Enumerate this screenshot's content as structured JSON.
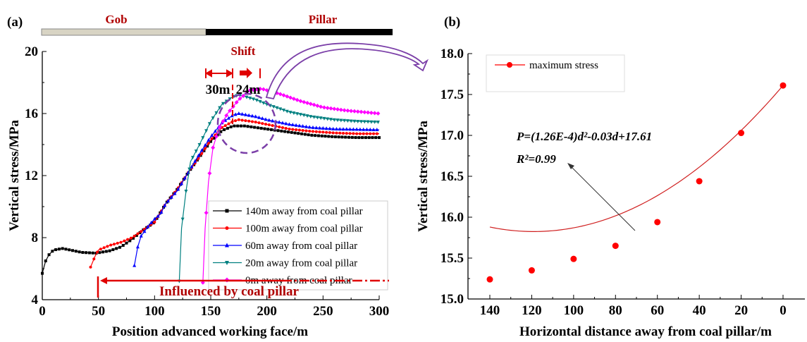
{
  "chart_data": [
    {
      "panel_label": "(a)",
      "type": "line",
      "xlabel": "Position advanced working face/m",
      "ylabel": "Vertical stress/MPa",
      "xlim": [
        0,
        300
      ],
      "ylim": [
        4,
        20
      ],
      "xticks": [
        "0",
        "50",
        "100",
        "150",
        "200",
        "250",
        "300"
      ],
      "yticks": [
        "4",
        "8",
        "12",
        "16",
        "20"
      ],
      "legend_position": "bottom-right",
      "zone_bar": {
        "gob_label": "Gob",
        "pillar_label": "Pillar",
        "boundary_x": 150
      },
      "annotations": {
        "shift": "Shift",
        "shift1": "30m",
        "shift2": "24m",
        "influence": "Influenced by coal pillar",
        "influence_start_x": 50
      },
      "series": [
        {
          "name": "140m away from coal pillar",
          "color": "#000000",
          "marker": "square",
          "x": [
            0,
            3,
            6,
            10,
            18,
            25,
            35,
            48,
            60,
            70,
            80,
            90,
            100,
            110,
            120,
            130,
            140,
            150,
            160,
            170,
            180,
            190,
            200,
            220,
            240,
            260,
            280,
            300
          ],
          "y": [
            5.7,
            6.5,
            6.9,
            7.2,
            7.3,
            7.2,
            7.05,
            7.0,
            7.15,
            7.4,
            7.9,
            8.5,
            9.0,
            10.2,
            11.1,
            12.2,
            13.2,
            14.2,
            14.9,
            15.2,
            15.2,
            15.1,
            15.0,
            14.8,
            14.6,
            14.5,
            14.45,
            14.45
          ]
        },
        {
          "name": "100m away from coal pillar",
          "color": "#ff0000",
          "marker": "circle",
          "x": [
            43,
            47,
            50,
            60,
            70,
            80,
            90,
            100,
            110,
            120,
            130,
            140,
            150,
            160,
            170,
            175,
            190,
            200,
            220,
            240,
            260,
            280,
            300
          ],
          "y": [
            6.1,
            6.8,
            7.2,
            7.5,
            7.7,
            8.0,
            8.5,
            9.0,
            10.2,
            11.1,
            12.2,
            13.2,
            14.3,
            15.1,
            15.5,
            15.6,
            15.45,
            15.3,
            15.0,
            14.85,
            14.75,
            14.7,
            14.7
          ]
        },
        {
          "name": "60m away from coal pillar",
          "color": "#0000ff",
          "marker": "triangle-up",
          "x": [
            82,
            85,
            88,
            95,
            100,
            105,
            110,
            120,
            130,
            140,
            150,
            160,
            170,
            175,
            190,
            200,
            220,
            240,
            260,
            300
          ],
          "y": [
            6.2,
            7.4,
            8.1,
            8.8,
            9.2,
            9.5,
            10.2,
            11.0,
            12.2,
            13.4,
            14.5,
            15.4,
            15.9,
            16.0,
            15.8,
            15.6,
            15.3,
            15.1,
            15.0,
            14.95
          ]
        },
        {
          "name": "20m away from coal pillar",
          "color": "#008080",
          "marker": "triangle-down",
          "x": [
            122,
            124,
            128,
            132,
            140,
            150,
            160,
            170,
            175,
            190,
            200,
            220,
            240,
            260,
            280,
            300
          ],
          "y": [
            5.2,
            8.6,
            11.0,
            12.9,
            14.0,
            15.5,
            16.6,
            17.1,
            17.2,
            16.9,
            16.6,
            16.1,
            15.8,
            15.6,
            15.5,
            15.45
          ]
        },
        {
          "name": "0m away from coal pillar",
          "color": "#ff00ff",
          "marker": "diamond",
          "x": [
            143,
            145,
            148,
            152,
            157,
            165,
            175,
            185,
            195,
            210,
            230,
            250,
            270,
            300
          ],
          "y": [
            5.1,
            8.6,
            11.6,
            13.8,
            15.0,
            16.0,
            16.9,
            17.5,
            17.6,
            17.3,
            16.8,
            16.4,
            16.2,
            16.0
          ]
        }
      ]
    },
    {
      "panel_label": "(b)",
      "type": "line",
      "xlabel": "Horizontal distance away from coal pillar/m",
      "ylabel": "Vertical stress/MPa",
      "xlim": [
        150,
        -10
      ],
      "ylim": [
        15.0,
        18.0
      ],
      "x_reversed": true,
      "xticks": [
        "140",
        "120",
        "100",
        "80",
        "60",
        "40",
        "20",
        "0"
      ],
      "yticks": [
        "15.0",
        "15.5",
        "16.0",
        "16.5",
        "17.0",
        "17.5",
        "18.0"
      ],
      "legend_position": "top-left",
      "series": [
        {
          "name": "maximum stress",
          "color": "#ff0000",
          "marker": "circle",
          "x": [
            140,
            120,
            100,
            80,
            60,
            40,
            20,
            0
          ],
          "y": [
            15.24,
            15.35,
            15.49,
            15.65,
            15.94,
            16.44,
            17.03,
            17.61
          ]
        }
      ],
      "fit": {
        "equation": "P=(1.26E-4)d²-0.03d+17.61",
        "r2": "R²=0.99",
        "a": 0.000126,
        "b": -0.03,
        "c": 17.61
      }
    }
  ]
}
